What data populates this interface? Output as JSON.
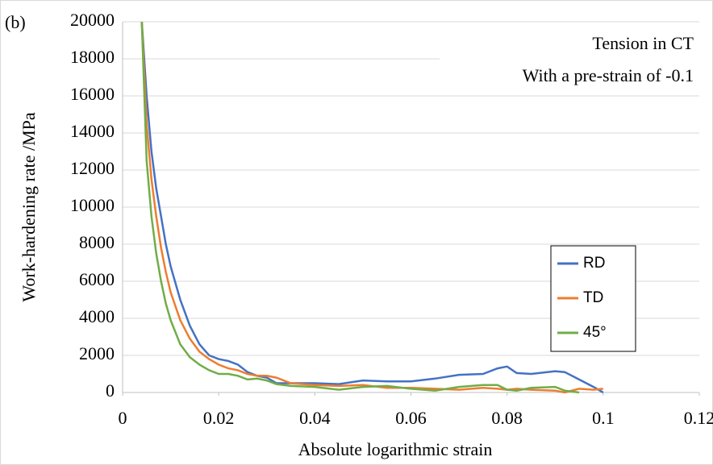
{
  "chart_data": {
    "type": "line",
    "panel_label": "(b)",
    "annotations": [
      "Tension in CT",
      "With a pre-strain of -0.1"
    ],
    "x_label": "Absolute logarithmic strain",
    "y_label": "Work-hardening rate /MPa",
    "x": [
      0.004,
      0.005,
      0.006,
      0.007,
      0.008,
      0.009,
      0.01,
      0.012,
      0.014,
      0.016,
      0.018,
      0.02,
      0.022,
      0.024,
      0.026,
      0.028,
      0.03,
      0.032,
      0.035,
      0.04,
      0.045,
      0.05,
      0.055,
      0.06,
      0.065,
      0.07,
      0.075,
      0.078,
      0.08,
      0.082,
      0.085,
      0.09,
      0.092,
      0.095,
      0.098,
      0.1
    ],
    "series": [
      {
        "name": "RD",
        "color": "#4472c4",
        "values": [
          20000,
          16000,
          13000,
          11000,
          9500,
          8000,
          6800,
          5000,
          3600,
          2600,
          2000,
          1800,
          1700,
          1500,
          1100,
          900,
          800,
          500,
          500,
          500,
          450,
          650,
          600,
          600,
          750,
          950,
          1000,
          1300,
          1400,
          1050,
          1000,
          1150,
          1100,
          700,
          300,
          0
        ]
      },
      {
        "name": "TD",
        "color": "#ed7d31",
        "values": [
          20000,
          14500,
          11500,
          9500,
          7800,
          6500,
          5400,
          3900,
          2900,
          2200,
          1800,
          1500,
          1300,
          1200,
          1000,
          900,
          900,
          800,
          500,
          400,
          350,
          400,
          250,
          250,
          200,
          150,
          250,
          200,
          150,
          200,
          150,
          100,
          0,
          200,
          150,
          200
        ]
      },
      {
        "name": "45°",
        "color": "#70ad47",
        "values": [
          20000,
          12500,
          9500,
          7500,
          6000,
          4800,
          3900,
          2600,
          1900,
          1500,
          1200,
          1000,
          1000,
          900,
          700,
          750,
          650,
          450,
          350,
          300,
          150,
          300,
          350,
          200,
          100,
          300,
          400,
          400,
          150,
          100,
          250,
          300,
          100,
          0,
          null,
          null
        ]
      }
    ],
    "xlim": [
      0,
      0.12
    ],
    "xticks": [
      0,
      0.02,
      0.04,
      0.06,
      0.08,
      0.1,
      0.12
    ],
    "ylim": [
      0,
      20000
    ],
    "yticks": [
      0,
      2000,
      4000,
      6000,
      8000,
      10000,
      12000,
      14000,
      16000,
      18000,
      20000
    ],
    "grid": true,
    "legend": "lower right"
  }
}
